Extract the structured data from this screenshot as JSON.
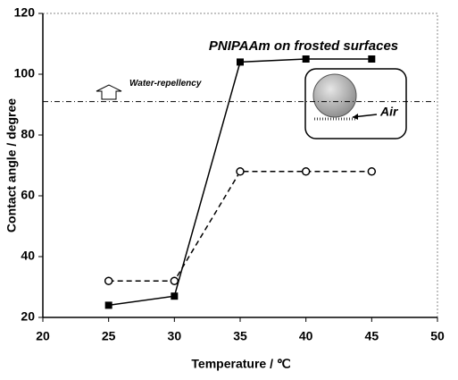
{
  "chart_data": {
    "type": "line",
    "x_label": "Temperature / ℃",
    "y_label": "Contact angle / degree",
    "xlim": [
      20,
      50
    ],
    "xticks": [
      20,
      25,
      30,
      35,
      40,
      45,
      50
    ],
    "ylim": [
      20,
      120
    ],
    "yticks": [
      20,
      40,
      60,
      80,
      100,
      120
    ],
    "x": [
      25,
      30,
      35,
      40,
      45
    ],
    "series": [
      {
        "color": "#000000",
        "marker": "square",
        "dashed": false,
        "values": [
          24,
          27,
          104,
          105,
          105
        ]
      },
      {
        "color": "#000000",
        "marker": "circle",
        "dashed": true,
        "values": [
          32,
          32,
          68,
          68,
          68
        ]
      }
    ],
    "reference_line": {
      "value": 91,
      "label": "Water-repellency"
    },
    "annotations": [
      "PNIPAAm on frosted surfaces",
      "Air"
    ]
  }
}
